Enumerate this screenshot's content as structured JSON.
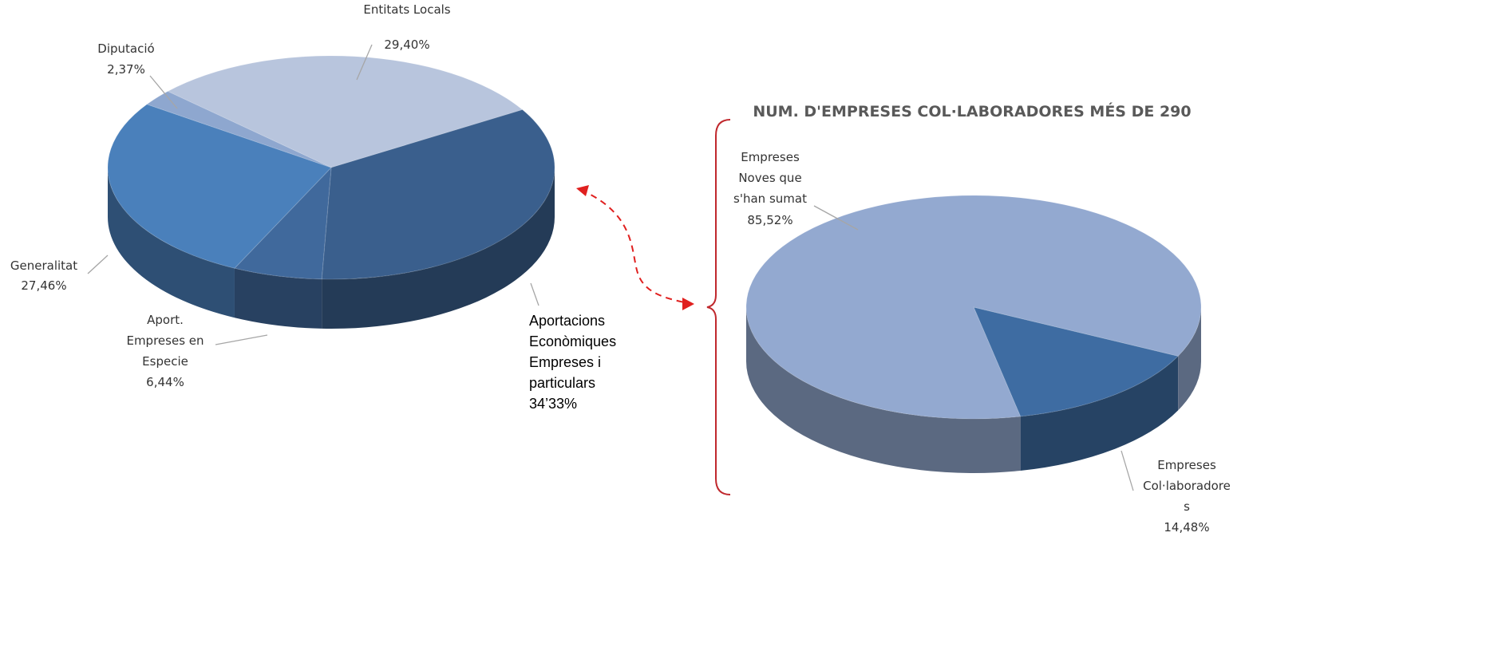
{
  "chart_data": [
    {
      "type": "pie3d",
      "categories": [
        "Entitats Locals",
        "Aportacions\nEconòmiques\nEmpreses i\nparticulars",
        "Aport.\nEmpreses en\nEspecie",
        "Generalitat",
        "Diputació"
      ],
      "values": [
        29.4,
        34.33,
        6.44,
        27.46,
        2.37
      ],
      "value_labels": [
        "29,40%",
        "34’33%",
        "6,44%",
        "27,46%",
        "2,37%"
      ],
      "colors": [
        "#b8c5dd",
        "#3a5f8d",
        "#40699c",
        "#4a80bb",
        "#8ea7cf"
      ]
    },
    {
      "type": "pie3d",
      "title": "NUM. D'EMPRESES COL·LABORADORES MÉS DE 290",
      "categories": [
        "Empreses\nCol·laboradore\ns",
        "Empreses\nNoves que\ns'han sumat"
      ],
      "values": [
        14.48,
        85.52
      ],
      "value_labels": [
        "14,48%",
        "85,52%"
      ],
      "colors": [
        "#3e6ca2",
        "#93a9d0"
      ]
    }
  ]
}
